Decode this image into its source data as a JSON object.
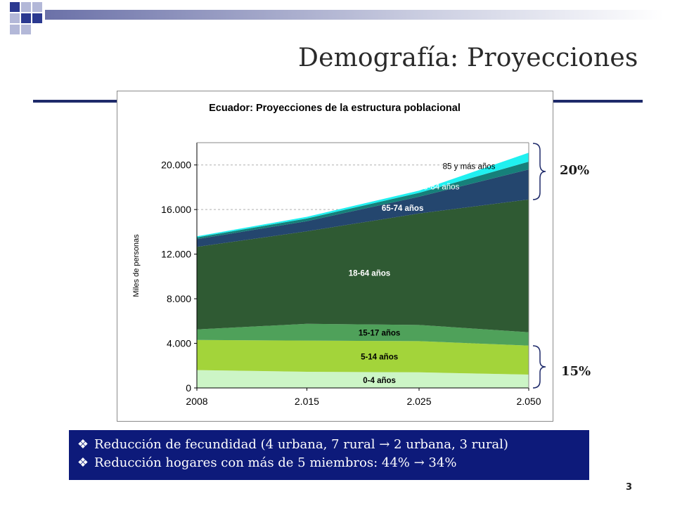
{
  "slide": {
    "title": "Demografía: Proyecciones",
    "page_number": "3"
  },
  "colors": {
    "title_rule": "#1e2a6a",
    "notes_background": "#0d1a7a",
    "deco_dark": "#2b3990",
    "deco_light": "#b3b8d8"
  },
  "braces": {
    "top_label": "20%",
    "bottom_label": "15%"
  },
  "notes": {
    "bullet_icon": "diamond-bullet-icon",
    "items": [
      "Reducción de fecundidad  (4 urbana, 7 rural → 2 urbana, 3 rural)",
      "Reducción hogares con más de 5 miembros: 44% → 34%"
    ]
  },
  "chart_data": {
    "type": "area",
    "stacked": true,
    "title": "Ecuador: Proyecciones de la estructura poblacional",
    "xlabel": "",
    "ylabel": "Miles de personas",
    "categories": [
      "2008",
      "2.015",
      "2.025",
      "2.050"
    ],
    "ylim": [
      0,
      22000
    ],
    "yticks": [
      0,
      4000,
      8000,
      12000,
      16000,
      20000
    ],
    "ytick_labels": [
      "0",
      "4.000",
      "8.000",
      "12.000",
      "16.000",
      "20.000"
    ],
    "grid": "horizontal dashed",
    "legend": "labels inside areas",
    "series": [
      {
        "name": "0-4 años",
        "values": [
          1600,
          1450,
          1400,
          1200
        ],
        "color": "#ccf5c6",
        "label_color": "#000000"
      },
      {
        "name": "5-14 años",
        "values": [
          2700,
          2800,
          2800,
          2600
        ],
        "color": "#a3d43a",
        "label_color": "#000000"
      },
      {
        "name": "15-17 años",
        "values": [
          950,
          1500,
          1450,
          1200
        ],
        "color": "#4fa15a",
        "label_color": "#000000"
      },
      {
        "name": "18-64 años",
        "values": [
          7400,
          8300,
          10000,
          11900
        ],
        "color": "#2f5a33",
        "label_color": "#ffffff"
      },
      {
        "name": "65-74 años",
        "values": [
          700,
          900,
          1500,
          2700
        ],
        "color": "#24466e",
        "label_color": "#ffffff"
      },
      {
        "name": "75-84 años",
        "values": [
          150,
          250,
          350,
          700
        ],
        "color": "#16807a",
        "label_color": "#ffffff"
      },
      {
        "name": "85 y más años",
        "values": [
          100,
          150,
          200,
          800
        ],
        "color": "#20f0f0",
        "label_color": "#000000"
      }
    ]
  }
}
